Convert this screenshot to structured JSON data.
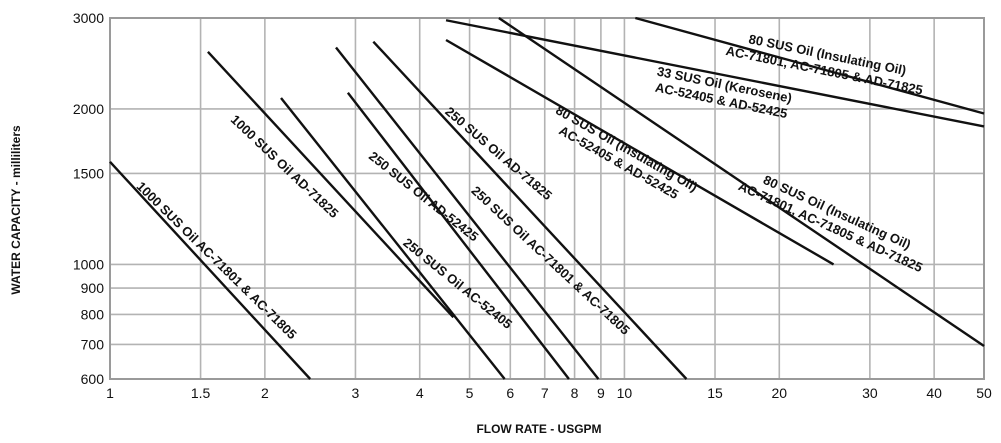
{
  "chart_data": {
    "type": "line",
    "xlabel": "FLOW RATE - USGPM",
    "ylabel": "WATER CAPACITY - milliliters",
    "x_scale": "log",
    "y_scale": "log",
    "xlim": [
      1,
      50
    ],
    "ylim": [
      600,
      3000
    ],
    "grid": true,
    "x_ticks": [
      1,
      1.5,
      2,
      3,
      4,
      5,
      6,
      7,
      8,
      9,
      10,
      15,
      20,
      30,
      40,
      50
    ],
    "x_tick_labels": [
      "1",
      "1.5",
      "2",
      "3",
      "4",
      "5",
      "6",
      "7",
      "8",
      "9",
      "10",
      "15",
      "20",
      "30",
      "40",
      "50"
    ],
    "y_ticks": [
      600,
      700,
      800,
      900,
      1000,
      1500,
      2000,
      3000
    ],
    "y_tick_labels": [
      "600",
      "700",
      "800",
      "900",
      "1000",
      "1500",
      "2000",
      "3000"
    ],
    "series": [
      {
        "name": "1000 SUS Oil AC-71801 & AC-71805",
        "lines": [
          "1000 SUS Oil AC-71801 & AC-71805"
        ],
        "x": [
          1.0,
          2.45
        ],
        "y": [
          1580,
          600
        ]
      },
      {
        "name": "1000 SUS Oil AD-71825",
        "lines": [
          "1000 SUS Oil AD-71825"
        ],
        "x": [
          1.55,
          4.65
        ],
        "y": [
          2580,
          790
        ]
      },
      {
        "name": "250 SUS Oil AC-52405",
        "lines": [
          "250 SUS Oil AC-52405"
        ],
        "x": [
          2.15,
          5.85
        ],
        "y": [
          2100,
          600
        ]
      },
      {
        "name": "250 SUS Oil AD-52425",
        "lines": [
          "250 SUS Oil AD-52425"
        ],
        "x": [
          2.9,
          7.8
        ],
        "y": [
          2150,
          600
        ]
      },
      {
        "name": "250 SUS Oil AC-71801 & AC-71805",
        "lines": [
          "250 SUS Oil AC-71801 & AC-71805"
        ],
        "x": [
          2.75,
          8.9
        ],
        "y": [
          2630,
          600
        ]
      },
      {
        "name": "250 SUS Oil AD-71825",
        "lines": [
          "250 SUS Oil AD-71825"
        ],
        "x": [
          3.25,
          13.2
        ],
        "y": [
          2700,
          600
        ]
      },
      {
        "name": "80 SUS Oil (Insulating Oil) AC-52405 & AD-52425",
        "lines": [
          "80 SUS Oil (Insulating Oil)",
          "AC-52405 & AD-52425"
        ],
        "x": [
          4.5,
          25.5
        ],
        "y": [
          2720,
          1000
        ]
      },
      {
        "name": "80 SUS Oil (Insulating Oil) AC-71801, AC-71805 & AD-71825",
        "lines": [
          "80 SUS Oil (Insulating Oil)",
          "AC-71801, AC-71805 & AD-71825"
        ],
        "x": [
          5.7,
          50
        ],
        "y": [
          3000,
          695
        ]
      },
      {
        "name": "33 SUS Oil (Kerosene) AC-52405 & AD-52425",
        "lines": [
          "33 SUS Oil (Kerosene)",
          "AC-52405 & AD-52425"
        ],
        "x": [
          4.5,
          50
        ],
        "y": [
          2970,
          1850
        ]
      },
      {
        "name": "80 SUS Oil (Insulating Oil) AC-71801, AC-71805 & AD-71825",
        "lines": [
          "80 SUS Oil (Insulating Oil)",
          "AC-71801, AC-71805 & AD-71825"
        ],
        "x": [
          10.5,
          50
        ],
        "y": [
          3000,
          1960
        ]
      }
    ]
  }
}
